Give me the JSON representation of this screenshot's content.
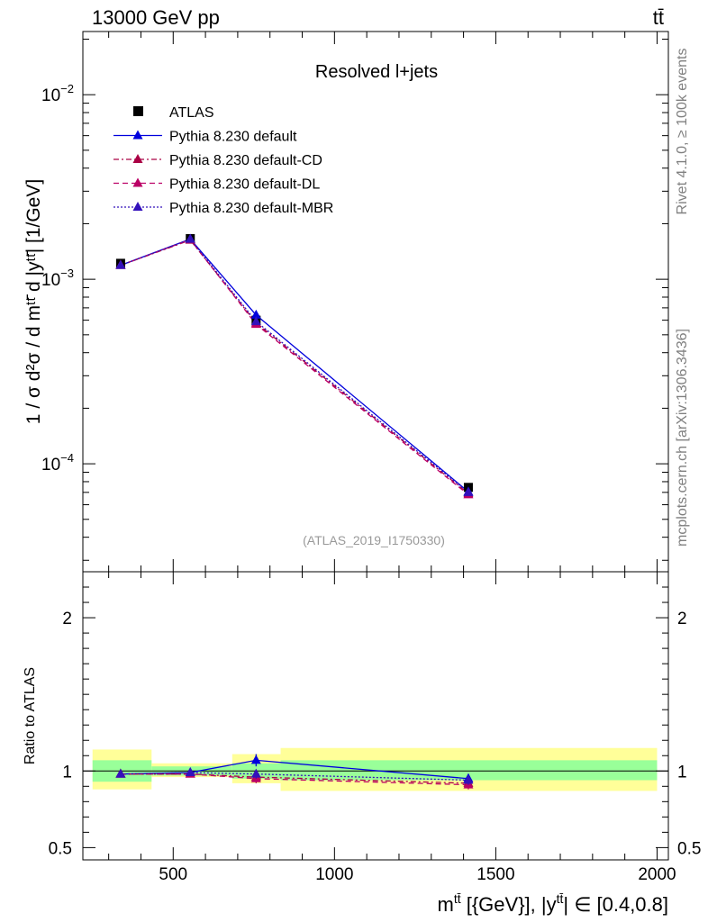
{
  "header": {
    "energy_label": "13000 GeV pp",
    "process_label": "tt̄"
  },
  "side_labels": {
    "rivet": "Rivet 4.1.0, ≥ 100k events",
    "mcplots": "mcplots.cern.ch [arXiv:1306.3436]"
  },
  "chart_data": [
    {
      "panel": "main",
      "type": "line",
      "title": "Resolved l+jets",
      "analysis_tag": "(ATLAS_2019_I1750330)",
      "ylabel": "1 / σ d²σ / d mᵗᵗ̄ d |yᵗᵗ̄| [1/GeV]",
      "xlim": [
        220,
        2035
      ],
      "ylim": [
        2.6e-05,
        0.022
      ],
      "yscale": "log",
      "ytick_labels": [
        {
          "value": 0.0001,
          "base": "10",
          "exp": "−4"
        },
        {
          "value": 0.001,
          "base": "10",
          "exp": "−3"
        },
        {
          "value": 0.01,
          "base": "10",
          "exp": "−2"
        }
      ],
      "legend_location": "top-left",
      "series": [
        {
          "name": "ATLAS",
          "style": "data",
          "color": "#000000",
          "x": [
            337,
            553,
            757,
            1415
          ],
          "y": [
            0.00122,
            0.00166,
            0.0006,
            7.45e-05
          ]
        },
        {
          "name": "Pythia 8.230 default",
          "style": "solid",
          "color": "#0000dd",
          "x": [
            337,
            553,
            757,
            1415
          ],
          "y": [
            0.00119,
            0.00165,
            0.00064,
            7.05e-05
          ]
        },
        {
          "name": "Pythia 8.230 default-CD",
          "style": "dashdot",
          "color": "#aa0044",
          "x": [
            337,
            553,
            757,
            1415
          ],
          "y": [
            0.00119,
            0.00163,
            0.00058,
            6.9e-05
          ]
        },
        {
          "name": "Pythia 8.230 default-DL",
          "style": "dashed",
          "color": "#bb0066",
          "x": [
            337,
            553,
            757,
            1415
          ],
          "y": [
            0.00119,
            0.00164,
            0.00057,
            6.8e-05
          ]
        },
        {
          "name": "Pythia 8.230 default-MBR",
          "style": "dotted",
          "color": "#3311bb",
          "x": [
            337,
            553,
            757,
            1415
          ],
          "y": [
            0.00119,
            0.00165,
            0.00059,
            7e-05
          ]
        }
      ]
    },
    {
      "panel": "ratio",
      "type": "line",
      "ylabel": "Ratio to ATLAS",
      "xlabel_parts": {
        "pre": "m",
        "sup1": "tt̄",
        "mid": " [{GeV}], |y",
        "sup2": "tt̄",
        "post": "| ∈ [0.4,0.8]"
      },
      "xlim": [
        220,
        2035
      ],
      "ylim": [
        0.42,
        2.3
      ],
      "xticks": [
        500,
        1000,
        1500,
        2000
      ],
      "xtick_labels": [
        "500",
        "1000",
        "1500",
        "2000"
      ],
      "yticks": [
        0.5,
        1,
        2
      ],
      "ytick_labels": [
        "0.5",
        "1",
        "2"
      ],
      "bins": [
        {
          "x_lo": 250,
          "x_hi": 433,
          "stat": [
            0.93,
            1.07
          ],
          "total": [
            0.88,
            1.14
          ]
        },
        {
          "x_lo": 433,
          "x_hi": 683,
          "stat": [
            0.97,
            1.03
          ],
          "total": [
            0.96,
            1.05
          ]
        },
        {
          "x_lo": 683,
          "x_hi": 833,
          "stat": [
            0.95,
            1.05
          ],
          "total": [
            0.92,
            1.11
          ]
        },
        {
          "x_lo": 833,
          "x_hi": 2000,
          "stat": [
            0.94,
            1.07
          ],
          "total": [
            0.87,
            1.15
          ]
        }
      ],
      "series": [
        {
          "name": "Pythia 8.230 default",
          "style": "solid",
          "color": "#0000dd",
          "x": [
            337,
            553,
            757,
            1415
          ],
          "y": [
            0.98,
            0.99,
            1.07,
            0.95
          ],
          "err": [
            0.02,
            0.02,
            0.04,
            0.03
          ]
        },
        {
          "name": "Pythia 8.230 default-CD",
          "style": "dashdot",
          "color": "#aa0044",
          "x": [
            337,
            553,
            757,
            1415
          ],
          "y": [
            0.98,
            0.98,
            0.96,
            0.92
          ],
          "err": [
            0.02,
            0.02,
            0.03,
            0.03
          ]
        },
        {
          "name": "Pythia 8.230 default-DL",
          "style": "dashed",
          "color": "#bb0066",
          "x": [
            337,
            553,
            757,
            1415
          ],
          "y": [
            0.98,
            0.98,
            0.95,
            0.91
          ],
          "err": [
            0.02,
            0.02,
            0.03,
            0.03
          ]
        },
        {
          "name": "Pythia 8.230 default-MBR",
          "style": "dotted",
          "color": "#3311bb",
          "x": [
            337,
            553,
            757,
            1415
          ],
          "y": [
            0.98,
            0.99,
            0.98,
            0.94
          ],
          "err": [
            0.02,
            0.02,
            0.03,
            0.03
          ]
        }
      ]
    }
  ],
  "colors": {
    "stat_band": "#99ff99",
    "total_band": "#ffff99"
  }
}
